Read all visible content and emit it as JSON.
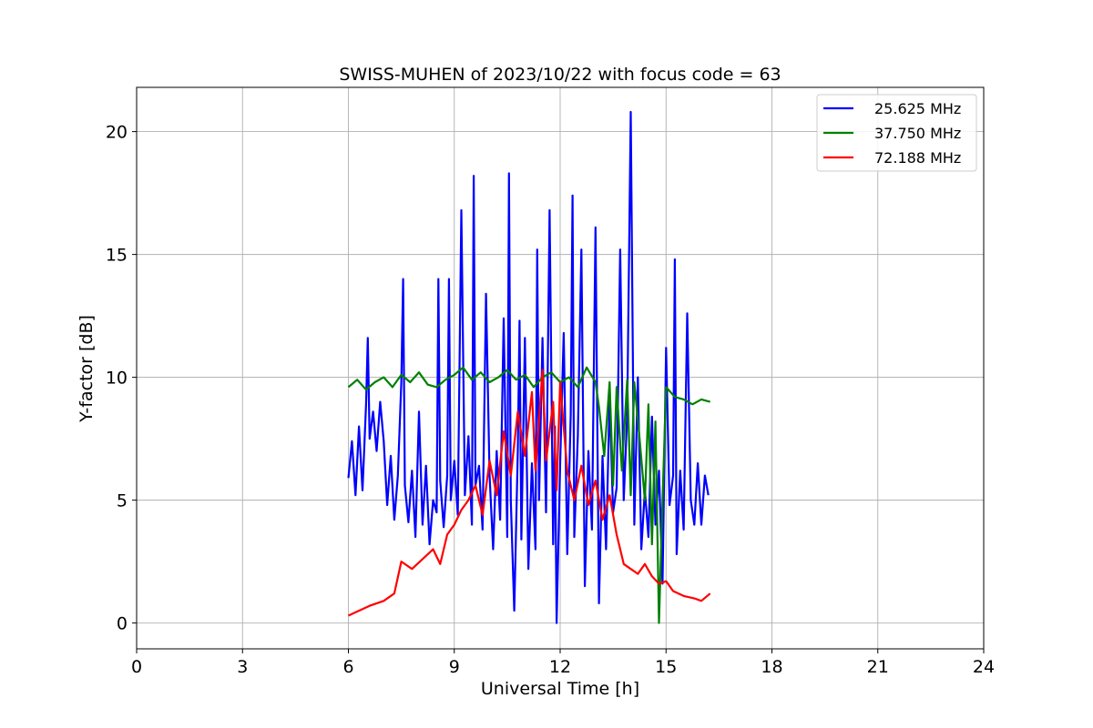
{
  "chart_data": {
    "type": "line",
    "title": "SWISS-MUHEN of 2023/10/22 with focus code = 63",
    "xlabel": "Universal Time [h]",
    "ylabel": "Y-factor [dB]",
    "xlim": [
      0,
      24
    ],
    "ylim": [
      -1.05,
      21.8
    ],
    "xticks": [
      0,
      3,
      6,
      9,
      12,
      15,
      18,
      21,
      24
    ],
    "yticks": [
      0,
      5,
      10,
      15,
      20
    ],
    "grid": true,
    "legend_position": "top-right",
    "series": [
      {
        "name": "25.625 MHz",
        "color": "#0000ff",
        "values": [
          [
            6.0,
            5.9
          ],
          [
            6.1,
            7.4
          ],
          [
            6.2,
            5.2
          ],
          [
            6.3,
            8.0
          ],
          [
            6.4,
            5.4
          ],
          [
            6.5,
            8.9
          ],
          [
            6.55,
            11.6
          ],
          [
            6.6,
            7.5
          ],
          [
            6.7,
            8.6
          ],
          [
            6.8,
            7.0
          ],
          [
            6.9,
            9.0
          ],
          [
            7.0,
            7.4
          ],
          [
            7.1,
            4.8
          ],
          [
            7.2,
            6.8
          ],
          [
            7.3,
            4.2
          ],
          [
            7.4,
            6.0
          ],
          [
            7.5,
            9.8
          ],
          [
            7.55,
            14.0
          ],
          [
            7.6,
            5.6
          ],
          [
            7.7,
            4.1
          ],
          [
            7.8,
            6.2
          ],
          [
            7.9,
            3.5
          ],
          [
            8.0,
            8.6
          ],
          [
            8.1,
            4.0
          ],
          [
            8.2,
            6.4
          ],
          [
            8.3,
            3.2
          ],
          [
            8.4,
            5.0
          ],
          [
            8.5,
            4.5
          ],
          [
            8.55,
            14.0
          ],
          [
            8.6,
            5.8
          ],
          [
            8.7,
            3.9
          ],
          [
            8.8,
            6.0
          ],
          [
            8.85,
            14.0
          ],
          [
            8.9,
            5.0
          ],
          [
            9.0,
            6.6
          ],
          [
            9.1,
            4.4
          ],
          [
            9.2,
            16.8
          ],
          [
            9.3,
            5.2
          ],
          [
            9.4,
            7.6
          ],
          [
            9.5,
            4.0
          ],
          [
            9.55,
            18.2
          ],
          [
            9.6,
            5.6
          ],
          [
            9.7,
            6.4
          ],
          [
            9.8,
            3.8
          ],
          [
            9.9,
            13.4
          ],
          [
            10.0,
            6.0
          ],
          [
            10.1,
            3.0
          ],
          [
            10.2,
            7.0
          ],
          [
            10.3,
            4.2
          ],
          [
            10.4,
            12.4
          ],
          [
            10.5,
            3.5
          ],
          [
            10.55,
            18.3
          ],
          [
            10.6,
            5.0
          ],
          [
            10.7,
            0.5
          ],
          [
            10.8,
            7.0
          ],
          [
            10.85,
            12.3
          ],
          [
            10.9,
            3.4
          ],
          [
            11.0,
            11.6
          ],
          [
            11.1,
            2.2
          ],
          [
            11.2,
            6.5
          ],
          [
            11.3,
            3.0
          ],
          [
            11.35,
            15.2
          ],
          [
            11.4,
            5.0
          ],
          [
            11.5,
            11.6
          ],
          [
            11.6,
            4.5
          ],
          [
            11.7,
            16.8
          ],
          [
            11.8,
            3.2
          ],
          [
            11.85,
            8.0
          ],
          [
            11.9,
            0.0
          ],
          [
            12.0,
            6.5
          ],
          [
            12.1,
            11.8
          ],
          [
            12.2,
            2.8
          ],
          [
            12.3,
            8.5
          ],
          [
            12.35,
            17.4
          ],
          [
            12.4,
            3.5
          ],
          [
            12.5,
            7.6
          ],
          [
            12.6,
            15.2
          ],
          [
            12.7,
            1.5
          ],
          [
            12.8,
            7.0
          ],
          [
            12.9,
            3.8
          ],
          [
            13.0,
            16.1
          ],
          [
            13.1,
            0.8
          ],
          [
            13.2,
            6.8
          ],
          [
            13.3,
            3.0
          ],
          [
            13.4,
            9.2
          ],
          [
            13.5,
            4.5
          ],
          [
            13.6,
            5.5
          ],
          [
            13.7,
            15.2
          ],
          [
            13.8,
            5.0
          ],
          [
            13.9,
            8.5
          ],
          [
            14.0,
            20.8
          ],
          [
            14.1,
            4.0
          ],
          [
            14.2,
            10.0
          ],
          [
            14.3,
            3.0
          ],
          [
            14.4,
            5.4
          ],
          [
            14.5,
            3.5
          ],
          [
            14.6,
            8.4
          ],
          [
            14.7,
            4.0
          ],
          [
            14.8,
            6.2
          ],
          [
            14.9,
            1.6
          ],
          [
            15.0,
            11.2
          ],
          [
            15.1,
            4.8
          ],
          [
            15.2,
            6.0
          ],
          [
            15.25,
            14.8
          ],
          [
            15.3,
            2.8
          ],
          [
            15.4,
            6.2
          ],
          [
            15.5,
            3.8
          ],
          [
            15.6,
            12.6
          ],
          [
            15.7,
            5.0
          ],
          [
            15.8,
            4.0
          ],
          [
            15.9,
            6.5
          ],
          [
            16.0,
            4.0
          ],
          [
            16.1,
            6.0
          ],
          [
            16.2,
            5.2
          ]
        ]
      },
      {
        "name": "37.750 MHz",
        "color": "#008000",
        "values": [
          [
            6.0,
            9.6
          ],
          [
            6.25,
            9.9
          ],
          [
            6.5,
            9.5
          ],
          [
            6.75,
            9.8
          ],
          [
            7.0,
            10.0
          ],
          [
            7.25,
            9.6
          ],
          [
            7.5,
            10.1
          ],
          [
            7.75,
            9.8
          ],
          [
            8.0,
            10.2
          ],
          [
            8.25,
            9.7
          ],
          [
            8.5,
            9.6
          ],
          [
            8.75,
            9.9
          ],
          [
            9.0,
            10.1
          ],
          [
            9.25,
            10.4
          ],
          [
            9.5,
            9.9
          ],
          [
            9.75,
            10.2
          ],
          [
            10.0,
            9.8
          ],
          [
            10.25,
            10.0
          ],
          [
            10.5,
            10.3
          ],
          [
            10.75,
            9.9
          ],
          [
            11.0,
            10.1
          ],
          [
            11.25,
            9.6
          ],
          [
            11.5,
            10.0
          ],
          [
            11.75,
            10.2
          ],
          [
            12.0,
            9.8
          ],
          [
            12.25,
            10.0
          ],
          [
            12.5,
            9.6
          ],
          [
            12.75,
            10.4
          ],
          [
            13.0,
            9.8
          ],
          [
            13.1,
            8.8
          ],
          [
            13.25,
            6.8
          ],
          [
            13.4,
            9.8
          ],
          [
            13.5,
            5.6
          ],
          [
            13.6,
            9.6
          ],
          [
            13.75,
            6.2
          ],
          [
            13.9,
            9.9
          ],
          [
            14.0,
            5.2
          ],
          [
            14.1,
            9.8
          ],
          [
            14.25,
            7.5
          ],
          [
            14.4,
            5.0
          ],
          [
            14.5,
            8.9
          ],
          [
            14.6,
            3.2
          ],
          [
            14.7,
            8.2
          ],
          [
            14.8,
            0.0
          ],
          [
            14.9,
            5.0
          ],
          [
            15.0,
            9.6
          ],
          [
            15.25,
            9.2
          ],
          [
            15.5,
            9.1
          ],
          [
            15.75,
            8.9
          ],
          [
            16.0,
            9.1
          ],
          [
            16.25,
            9.0
          ]
        ]
      },
      {
        "name": "72.188 MHz",
        "color": "#ff0000",
        "values": [
          [
            6.0,
            0.3
          ],
          [
            6.3,
            0.5
          ],
          [
            6.6,
            0.7
          ],
          [
            7.0,
            0.9
          ],
          [
            7.3,
            1.2
          ],
          [
            7.5,
            2.5
          ],
          [
            7.8,
            2.2
          ],
          [
            8.1,
            2.6
          ],
          [
            8.4,
            3.0
          ],
          [
            8.6,
            2.4
          ],
          [
            8.8,
            3.6
          ],
          [
            9.0,
            4.0
          ],
          [
            9.2,
            4.6
          ],
          [
            9.4,
            5.0
          ],
          [
            9.6,
            5.6
          ],
          [
            9.8,
            4.4
          ],
          [
            10.0,
            6.6
          ],
          [
            10.2,
            5.2
          ],
          [
            10.4,
            7.8
          ],
          [
            10.6,
            6.0
          ],
          [
            10.8,
            8.6
          ],
          [
            11.0,
            6.8
          ],
          [
            11.2,
            9.4
          ],
          [
            11.3,
            6.2
          ],
          [
            11.5,
            10.3
          ],
          [
            11.6,
            6.6
          ],
          [
            11.8,
            9.0
          ],
          [
            11.9,
            5.4
          ],
          [
            12.0,
            9.8
          ],
          [
            12.2,
            6.2
          ],
          [
            12.4,
            5.0
          ],
          [
            12.6,
            6.4
          ],
          [
            12.8,
            4.8
          ],
          [
            13.0,
            5.8
          ],
          [
            13.2,
            4.2
          ],
          [
            13.4,
            5.2
          ],
          [
            13.6,
            3.6
          ],
          [
            13.8,
            2.4
          ],
          [
            14.0,
            2.2
          ],
          [
            14.2,
            2.0
          ],
          [
            14.4,
            2.4
          ],
          [
            14.6,
            1.9
          ],
          [
            14.8,
            1.6
          ],
          [
            15.0,
            1.7
          ],
          [
            15.2,
            1.3
          ],
          [
            15.5,
            1.1
          ],
          [
            15.8,
            1.0
          ],
          [
            16.0,
            0.9
          ],
          [
            16.25,
            1.2
          ]
        ]
      }
    ]
  }
}
